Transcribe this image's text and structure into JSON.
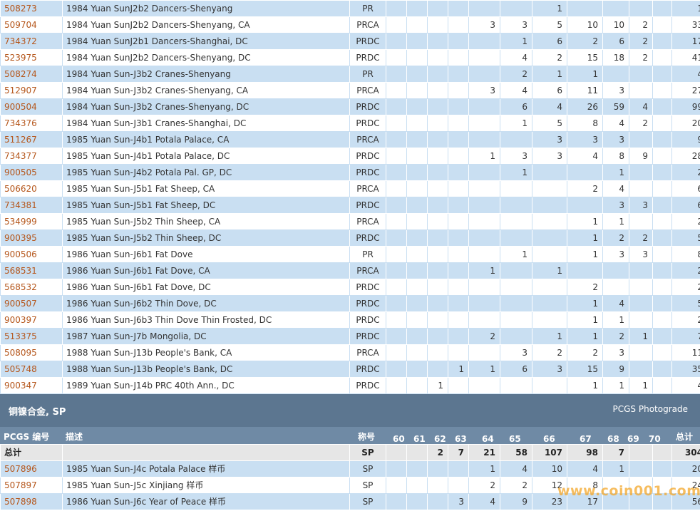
{
  "grade_columns": [
    "60",
    "61",
    "62",
    "63",
    "64",
    "65",
    "66",
    "67",
    "68",
    "69",
    "70"
  ],
  "rows": [
    {
      "id": "508273",
      "desc": "1984 Yuan SunJ2b2 Dancers-Shenyang",
      "des": "PR",
      "g": [
        "",
        "",
        "",
        "",
        "",
        "",
        "1",
        "",
        "",
        "",
        ""
      ],
      "total": "1"
    },
    {
      "id": "509704",
      "desc": "1984 Yuan SunJ2b2 Dancers-Shenyang, CA",
      "des": "PRCA",
      "g": [
        "",
        "",
        "",
        "",
        "3",
        "3",
        "5",
        "10",
        "10",
        "2",
        ""
      ],
      "total": "33"
    },
    {
      "id": "734372",
      "desc": "1984 Yuan SunJ2b1 Dancers-Shanghai, DC",
      "des": "PRDC",
      "g": [
        "",
        "",
        "",
        "",
        "",
        "1",
        "6",
        "2",
        "6",
        "2",
        ""
      ],
      "total": "17"
    },
    {
      "id": "523975",
      "desc": "1984 Yuan SunJ2b2 Dancers-Shenyang, DC",
      "des": "PRDC",
      "g": [
        "",
        "",
        "",
        "",
        "",
        "4",
        "2",
        "15",
        "18",
        "2",
        ""
      ],
      "total": "41"
    },
    {
      "id": "508274",
      "desc": "1984 Yuan Sun-J3b2 Cranes-Shenyang",
      "des": "PR",
      "g": [
        "",
        "",
        "",
        "",
        "",
        "2",
        "1",
        "1",
        "",
        "",
        ""
      ],
      "total": "4"
    },
    {
      "id": "512907",
      "desc": "1984 Yuan Sun-J3b2 Cranes-Shenyang, CA",
      "des": "PRCA",
      "g": [
        "",
        "",
        "",
        "",
        "3",
        "4",
        "6",
        "11",
        "3",
        "",
        ""
      ],
      "total": "27"
    },
    {
      "id": "900504",
      "desc": "1984 Yuan Sun-J3b2 Cranes-Shenyang, DC",
      "des": "PRDC",
      "g": [
        "",
        "",
        "",
        "",
        "",
        "6",
        "4",
        "26",
        "59",
        "4",
        ""
      ],
      "total": "99"
    },
    {
      "id": "734376",
      "desc": "1984 Yuan Sun-J3b1 Cranes-Shanghai, DC",
      "des": "PRDC",
      "g": [
        "",
        "",
        "",
        "",
        "",
        "1",
        "5",
        "8",
        "4",
        "2",
        ""
      ],
      "total": "20"
    },
    {
      "id": "511267",
      "desc": "1985 Yuan Sun-J4b1 Potala Palace, CA",
      "des": "PRCA",
      "g": [
        "",
        "",
        "",
        "",
        "",
        "",
        "3",
        "3",
        "3",
        "",
        ""
      ],
      "total": "9"
    },
    {
      "id": "734377",
      "desc": "1985 Yuan Sun-J4b1 Potala Palace, DC",
      "des": "PRDC",
      "g": [
        "",
        "",
        "",
        "",
        "1",
        "3",
        "3",
        "4",
        "8",
        "9",
        ""
      ],
      "total": "28"
    },
    {
      "id": "900505",
      "desc": "1985 Yuan Sun-J4b2 Potala Pal. GP, DC",
      "des": "PRDC",
      "g": [
        "",
        "",
        "",
        "",
        "",
        "1",
        "",
        "",
        "1",
        "",
        ""
      ],
      "total": "2"
    },
    {
      "id": "506620",
      "desc": "1985 Yuan Sun-J5b1 Fat Sheep, CA",
      "des": "PRCA",
      "g": [
        "",
        "",
        "",
        "",
        "",
        "",
        "",
        "2",
        "4",
        "",
        ""
      ],
      "total": "6"
    },
    {
      "id": "734381",
      "desc": "1985 Yuan Sun-J5b1 Fat Sheep, DC",
      "des": "PRDC",
      "g": [
        "",
        "",
        "",
        "",
        "",
        "",
        "",
        "",
        "3",
        "3",
        ""
      ],
      "total": "6"
    },
    {
      "id": "534999",
      "desc": "1985 Yuan Sun-J5b2 Thin Sheep, CA",
      "des": "PRCA",
      "g": [
        "",
        "",
        "",
        "",
        "",
        "",
        "",
        "1",
        "1",
        "",
        ""
      ],
      "total": "2"
    },
    {
      "id": "900395",
      "desc": "1985 Yuan Sun-J5b2 Thin Sheep, DC",
      "des": "PRDC",
      "g": [
        "",
        "",
        "",
        "",
        "",
        "",
        "",
        "1",
        "2",
        "2",
        ""
      ],
      "total": "5"
    },
    {
      "id": "900506",
      "desc": "1986 Yuan Sun-J6b1 Fat Dove",
      "des": "PR",
      "g": [
        "",
        "",
        "",
        "",
        "",
        "1",
        "",
        "1",
        "3",
        "3",
        ""
      ],
      "total": "8"
    },
    {
      "id": "568531",
      "desc": "1986 Yuan Sun-J6b1 Fat Dove, CA",
      "des": "PRCA",
      "g": [
        "",
        "",
        "",
        "",
        "1",
        "",
        "1",
        "",
        "",
        "",
        ""
      ],
      "total": "2"
    },
    {
      "id": "568532",
      "desc": "1986 Yuan Sun-J6b1 Fat Dove, DC",
      "des": "PRDC",
      "g": [
        "",
        "",
        "",
        "",
        "",
        "",
        "",
        "2",
        "",
        "",
        ""
      ],
      "total": "2"
    },
    {
      "id": "900507",
      "desc": "1986 Yuan Sun-J6b2 Thin Dove, DC",
      "des": "PRDC",
      "g": [
        "",
        "",
        "",
        "",
        "",
        "",
        "",
        "1",
        "4",
        "",
        ""
      ],
      "total": "5"
    },
    {
      "id": "900397",
      "desc": "1986 Yuan Sun-J6b3 Thin Dove Thin Frosted, DC",
      "des": "PRDC",
      "g": [
        "",
        "",
        "",
        "",
        "",
        "",
        "",
        "1",
        "1",
        "",
        ""
      ],
      "total": "2"
    },
    {
      "id": "513375",
      "desc": "1987 Yuan Sun-J7b Mongolia, DC",
      "des": "PRDC",
      "g": [
        "",
        "",
        "",
        "",
        "2",
        "",
        "1",
        "1",
        "2",
        "1",
        ""
      ],
      "total": "7"
    },
    {
      "id": "508095",
      "desc": "1988 Yuan Sun-J13b People's Bank, CA",
      "des": "PRCA",
      "g": [
        "",
        "",
        "",
        "",
        "",
        "3",
        "2",
        "2",
        "3",
        "",
        ""
      ],
      "total": "11"
    },
    {
      "id": "505748",
      "desc": "1988 Yuan Sun-J13b People's Bank, DC",
      "des": "PRDC",
      "g": [
        "",
        "",
        "",
        "1",
        "1",
        "6",
        "3",
        "15",
        "9",
        "",
        ""
      ],
      "total": "35"
    },
    {
      "id": "900347",
      "desc": "1989 Yuan Sun-J14b PRC 40th Ann., DC",
      "des": "PRDC",
      "g": [
        "",
        "",
        "1",
        "",
        "",
        "",
        "",
        "1",
        "1",
        "1",
        ""
      ],
      "total": "4"
    }
  ],
  "section": {
    "title": "铜镍合金, SP",
    "right_label": "PCGS Photograde"
  },
  "header": {
    "num": "PCGS 编号",
    "desc": "描述",
    "des": "称号",
    "total": "总计"
  },
  "totals": {
    "label": "总计",
    "des": "SP",
    "g": [
      "",
      "",
      "2",
      "7",
      "21",
      "58",
      "107",
      "98",
      "7",
      "",
      ""
    ],
    "total": "304"
  },
  "sp_rows": [
    {
      "id": "507896",
      "desc": "1985 Yuan Sun-J4c Potala Palace 样币",
      "des": "SP",
      "g": [
        "",
        "",
        "",
        "",
        "1",
        "4",
        "10",
        "4",
        "1",
        "",
        ""
      ],
      "total": "20"
    },
    {
      "id": "507897",
      "desc": "1985 Yuan Sun-J5c Xinjiang 样币",
      "des": "SP",
      "g": [
        "",
        "",
        "",
        "",
        "2",
        "2",
        "12",
        "8",
        "",
        "",
        ""
      ],
      "total": "24"
    },
    {
      "id": "507898",
      "desc": "1986 Yuan Sun-J6c Year of Peace 样币",
      "des": "SP",
      "g": [
        "",
        "",
        "",
        "3",
        "4",
        "9",
        "23",
        "17",
        "",
        "",
        ""
      ],
      "total": "56"
    }
  ],
  "watermark": "www.coin001.com"
}
